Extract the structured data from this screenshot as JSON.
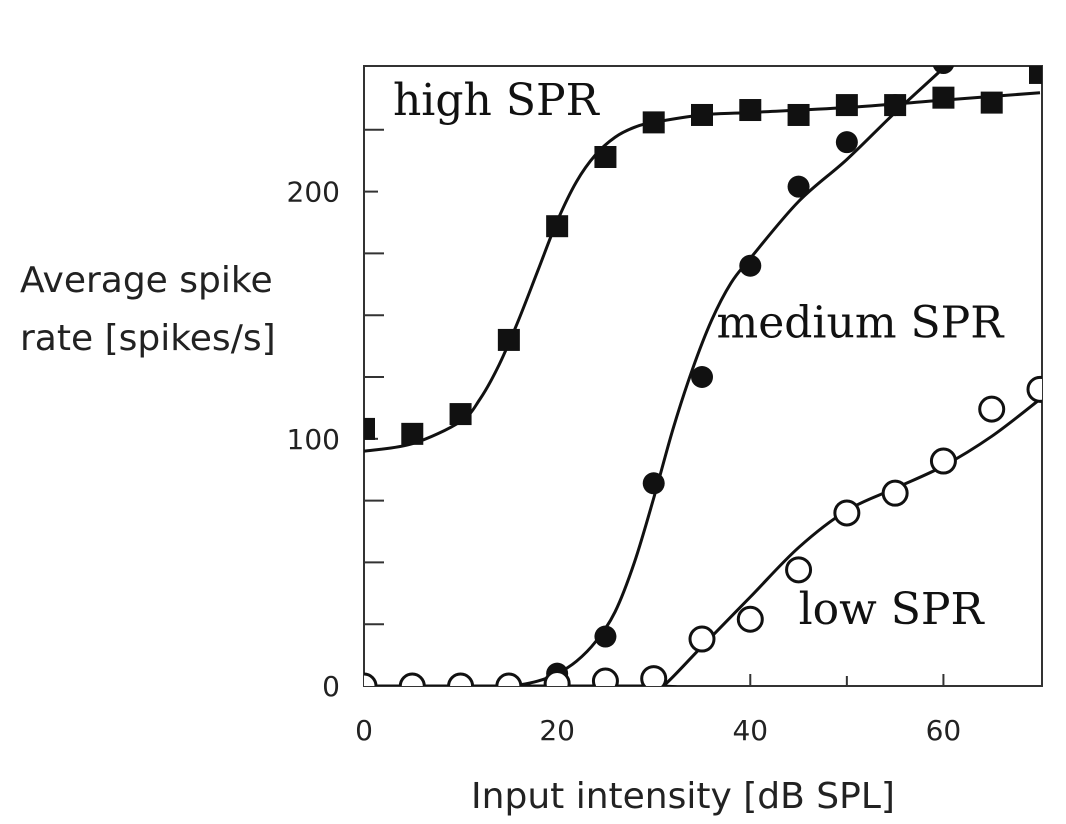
{
  "chart_data": {
    "type": "scatter",
    "xlabel": "Input intensity [dB SPL]",
    "ylabel": [
      "Average spike",
      "rate [spikes/s]"
    ],
    "xlim": [
      0,
      70
    ],
    "ylim": [
      0,
      250
    ],
    "xticks": [
      0,
      20,
      40,
      60
    ],
    "xminor": [
      10,
      30,
      50
    ],
    "yticks": [
      0,
      100,
      200
    ],
    "yminor": [
      25,
      50,
      75,
      125,
      150,
      175,
      225
    ],
    "grid": false,
    "legend": "none",
    "series": [
      {
        "name": "high SPR",
        "marker": "filled-square",
        "color": "#111111",
        "x": [
          0,
          5,
          10,
          15,
          20,
          25,
          30,
          35,
          40,
          45,
          50,
          55,
          60,
          65,
          70
        ],
        "y": [
          104,
          102,
          110,
          140,
          186,
          214,
          228,
          231,
          233,
          231,
          235,
          235,
          238,
          236,
          248
        ],
        "fit_x": [
          0,
          5,
          10,
          12,
          14,
          16,
          18,
          20,
          22,
          24,
          26,
          28,
          30,
          35,
          40,
          50,
          60,
          70
        ],
        "fit_y": [
          95,
          98,
          107,
          116,
          130,
          148,
          168,
          188,
          204,
          215,
          222,
          226,
          228,
          231,
          232,
          234,
          237,
          240
        ]
      },
      {
        "name": "medium SPR",
        "marker": "filled-circle",
        "color": "#111111",
        "x": [
          0,
          5,
          10,
          15,
          20,
          25,
          30,
          35,
          40,
          45,
          50,
          55,
          60
        ],
        "y": [
          0,
          0,
          0,
          0,
          5,
          20,
          82,
          125,
          170,
          202,
          220,
          235,
          252
        ],
        "fit_x": [
          0,
          10,
          15,
          18,
          20,
          22,
          24,
          26,
          28,
          30,
          32,
          34,
          36,
          38,
          40,
          45,
          50,
          55,
          60,
          62
        ],
        "fit_y": [
          0,
          0,
          0,
          2,
          5,
          10,
          18,
          30,
          50,
          76,
          104,
          128,
          148,
          163,
          173,
          196,
          213,
          232,
          250,
          258
        ]
      },
      {
        "name": "low SPR",
        "marker": "open-circle",
        "color": "#111111",
        "x": [
          0,
          5,
          10,
          15,
          20,
          25,
          30,
          35,
          40,
          45,
          50,
          55,
          60,
          65,
          70
        ],
        "y": [
          0,
          0,
          0,
          0,
          1,
          2,
          3,
          19,
          27,
          47,
          70,
          78,
          91,
          112,
          120
        ],
        "fit_x": [
          0,
          30,
          31,
          35,
          40,
          45,
          50,
          55,
          60,
          65,
          70
        ],
        "fit_y": [
          0,
          0,
          0,
          16,
          36,
          56,
          71,
          80,
          89,
          101,
          116
        ]
      }
    ],
    "annotations": [
      {
        "text": "high SPR",
        "x": 3,
        "y": 231
      },
      {
        "text": "medium SPR",
        "x": 36.5,
        "y": 141
      },
      {
        "text": "low SPR",
        "x": 45,
        "y": 25
      }
    ]
  }
}
